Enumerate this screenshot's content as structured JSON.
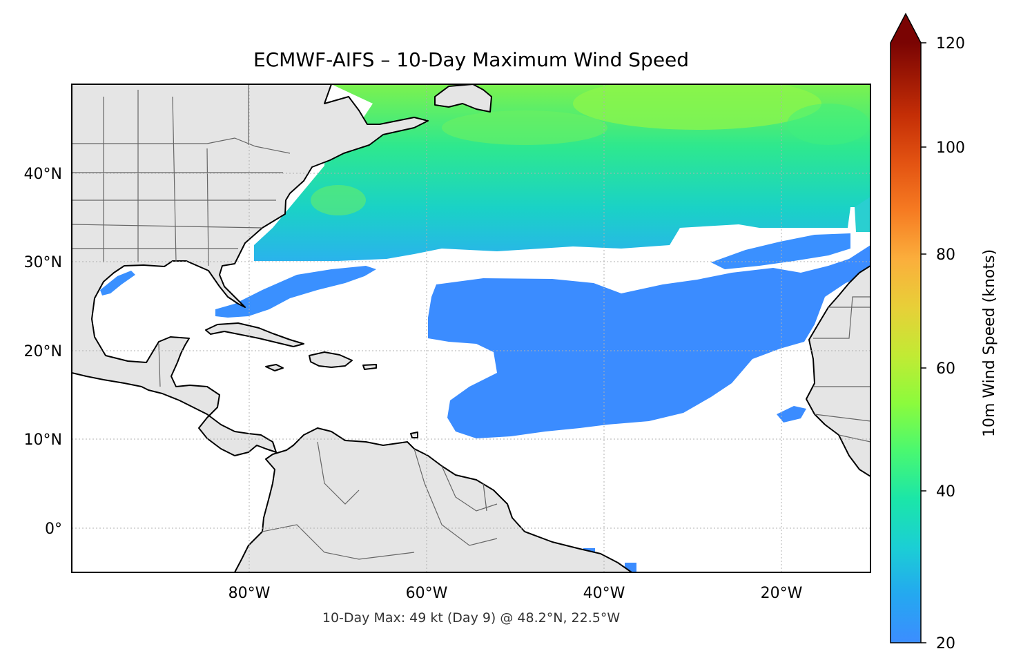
{
  "map": {
    "title": "ECMWF-AIFS – 10-Day Maximum Wind Speed",
    "subtitle": "10-Day Max: 49 kt (Day 9) @ 48.2°N, 22.5°W",
    "lon_range": [
      -100,
      -10
    ],
    "lat_range": [
      -5,
      50
    ],
    "gridlines": "dotted",
    "land_color": "#e5e5e5",
    "ocean_color": "#ffffff",
    "lon_ticks": [
      {
        "value": -80,
        "label": "80°W"
      },
      {
        "value": -60,
        "label": "60°W"
      },
      {
        "value": -40,
        "label": "40°W"
      },
      {
        "value": -20,
        "label": "20°W"
      }
    ],
    "lat_ticks": [
      {
        "value": 40,
        "label": "40°N"
      },
      {
        "value": 30,
        "label": "30°N"
      },
      {
        "value": 20,
        "label": "20°N"
      },
      {
        "value": 10,
        "label": "10°N"
      },
      {
        "value": 0,
        "label": "0°"
      }
    ]
  },
  "colorbar": {
    "label": "10m Wind Speed (knots)",
    "range": [
      20,
      120
    ],
    "extend": "max",
    "ticks": [
      {
        "value": 20,
        "label": "20"
      },
      {
        "value": 40,
        "label": "40"
      },
      {
        "value": 60,
        "label": "60"
      },
      {
        "value": 80,
        "label": "80"
      },
      {
        "value": 100,
        "label": "100"
      },
      {
        "value": 120,
        "label": "120"
      }
    ],
    "colormap": "turbo"
  }
}
